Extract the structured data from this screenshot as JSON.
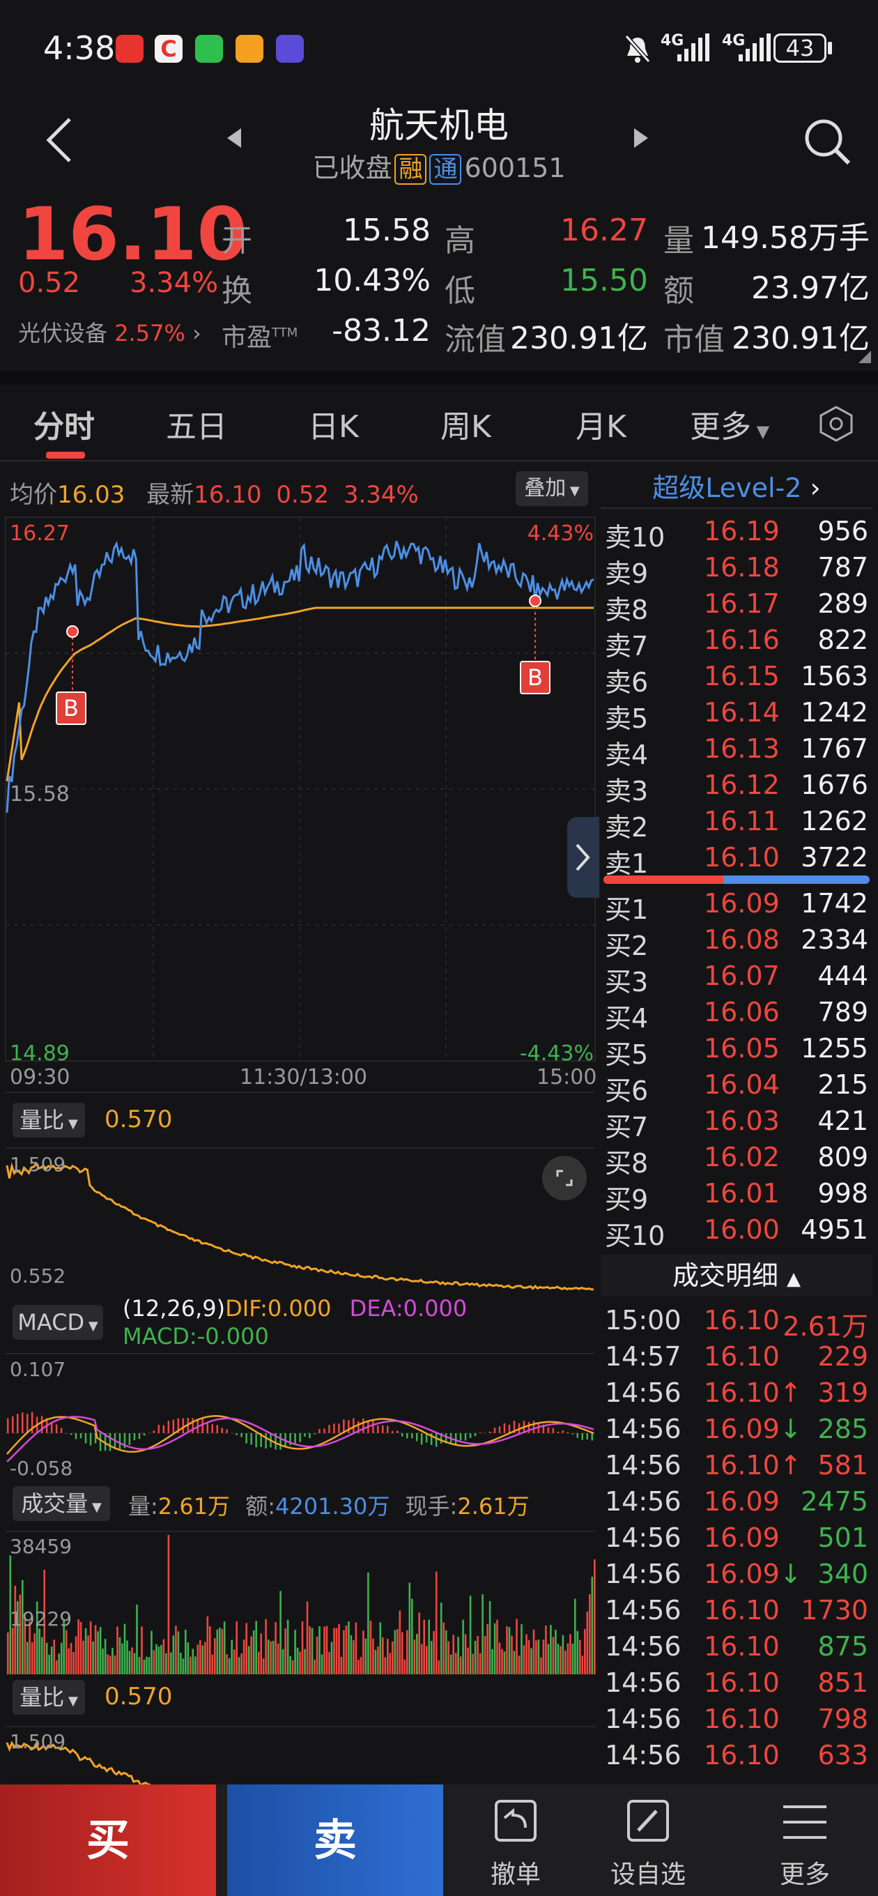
{
  "status_bar": {
    "time": "4:38",
    "battery": "43",
    "network": [
      "4G",
      "4G"
    ],
    "app_icons": [
      "red-notes-icon",
      "red-c-icon",
      "wechat-icon",
      "orange-app-icon",
      "purple-app-icon"
    ]
  },
  "header": {
    "title": "航天机电",
    "status": "已收盘",
    "tag_margin": "融",
    "tag_connect": "通",
    "code": "600151"
  },
  "quote": {
    "price": "16.10",
    "change": "0.52",
    "change_pct": "3.34%",
    "sector_name": "光伏设备",
    "sector_pct": "2.57%",
    "open_label": "开",
    "open": "15.58",
    "high_label": "高",
    "high": "16.27",
    "volume_label": "量",
    "volume": "149.58万手",
    "turnover_label": "换",
    "turnover": "10.43%",
    "low_label": "低",
    "low": "15.50",
    "amount_label": "额",
    "amount": "23.97亿",
    "pe_label": "市盈",
    "pe_sup": "TTM",
    "pe": "-83.12",
    "float_label": "流值",
    "float_value": "230.91亿",
    "mcap_label": "市值",
    "mcap": "230.91亿"
  },
  "tabs": [
    "分时",
    "五日",
    "日K",
    "周K",
    "月K",
    "更多"
  ],
  "intraday": {
    "avg_label": "均价",
    "avg": "16.03",
    "latest_label": "最新",
    "latest": "16.10",
    "latest_change": "0.52",
    "latest_pct": "3.34%",
    "overlay_btn": "叠加",
    "y_top": "16.27",
    "y_mid": "15.58",
    "y_bottom": "14.89",
    "pct_top": "4.43%",
    "pct_bottom": "-4.43%",
    "x_labels": [
      "09:30",
      "11:30/13:00",
      "15:00"
    ],
    "buy_marker": "B"
  },
  "volume_ratio": {
    "label": "量比",
    "value": "0.570",
    "y_top": "1.509",
    "y_bottom": "0.552"
  },
  "macd": {
    "label": "MACD",
    "params": "(12,26,9)",
    "dif_label": "DIF:",
    "dif": "0.000",
    "dea_label": "DEA:",
    "dea": "0.000",
    "macd_label": "MACD:",
    "macd": "-0.000",
    "y_top": "0.107",
    "y_bottom": "-0.058"
  },
  "volume": {
    "label": "成交量",
    "vol_label": "量:",
    "vol": "2.61万",
    "amt_label": "额:",
    "amt": "4201.30万",
    "cur_label": "现手:",
    "cur": "2.61万",
    "y_top": "38459",
    "y_mid": "19229"
  },
  "volume_ratio2": {
    "label": "量比",
    "value": "0.570",
    "y_top": "1.509"
  },
  "orderbook": {
    "title": "超级Level-2",
    "asks": [
      {
        "label": "卖10",
        "price": "16.19",
        "vol": "956"
      },
      {
        "label": "卖9",
        "price": "16.18",
        "vol": "787"
      },
      {
        "label": "卖8",
        "price": "16.17",
        "vol": "289"
      },
      {
        "label": "卖7",
        "price": "16.16",
        "vol": "822"
      },
      {
        "label": "卖6",
        "price": "16.15",
        "vol": "1563"
      },
      {
        "label": "卖5",
        "price": "16.14",
        "vol": "1242"
      },
      {
        "label": "卖4",
        "price": "16.13",
        "vol": "1767"
      },
      {
        "label": "卖3",
        "price": "16.12",
        "vol": "1676"
      },
      {
        "label": "卖2",
        "price": "16.11",
        "vol": "1262"
      },
      {
        "label": "卖1",
        "price": "16.10",
        "vol": "3722"
      }
    ],
    "bids": [
      {
        "label": "买1",
        "price": "16.09",
        "vol": "1742"
      },
      {
        "label": "买2",
        "price": "16.08",
        "vol": "2334"
      },
      {
        "label": "买3",
        "price": "16.07",
        "vol": "444"
      },
      {
        "label": "买4",
        "price": "16.06",
        "vol": "789"
      },
      {
        "label": "买5",
        "price": "16.05",
        "vol": "1255"
      },
      {
        "label": "买6",
        "price": "16.04",
        "vol": "215"
      },
      {
        "label": "买7",
        "price": "16.03",
        "vol": "421"
      },
      {
        "label": "买8",
        "price": "16.02",
        "vol": "809"
      },
      {
        "label": "买9",
        "price": "16.01",
        "vol": "998"
      },
      {
        "label": "买10",
        "price": "16.00",
        "vol": "4951"
      }
    ],
    "bid_ask_ratio": 0.45
  },
  "trades": {
    "title": "成交明细",
    "rows": [
      {
        "time": "15:00",
        "price": "16.10",
        "vol": "2.61万",
        "arrow": "",
        "pc": "red",
        "vc": "red"
      },
      {
        "time": "14:57",
        "price": "16.10",
        "vol": "229",
        "arrow": "",
        "pc": "red",
        "vc": "red"
      },
      {
        "time": "14:56",
        "price": "16.10",
        "vol": "319",
        "arrow": "↑",
        "pc": "red",
        "vc": "red"
      },
      {
        "time": "14:56",
        "price": "16.09",
        "vol": "285",
        "arrow": "↓",
        "pc": "red",
        "vc": "green"
      },
      {
        "time": "14:56",
        "price": "16.10",
        "vol": "581",
        "arrow": "↑",
        "pc": "red",
        "vc": "red"
      },
      {
        "time": "14:56",
        "price": "16.09",
        "vol": "2475",
        "arrow": "",
        "pc": "red",
        "vc": "green"
      },
      {
        "time": "14:56",
        "price": "16.09",
        "vol": "501",
        "arrow": "",
        "pc": "red",
        "vc": "green"
      },
      {
        "time": "14:56",
        "price": "16.09",
        "vol": "340",
        "arrow": "↓",
        "pc": "red",
        "vc": "green"
      },
      {
        "time": "14:56",
        "price": "16.10",
        "vol": "1730",
        "arrow": "",
        "pc": "red",
        "vc": "red"
      },
      {
        "time": "14:56",
        "price": "16.10",
        "vol": "875",
        "arrow": "",
        "pc": "red",
        "vc": "green"
      },
      {
        "time": "14:56",
        "price": "16.10",
        "vol": "851",
        "arrow": "",
        "pc": "red",
        "vc": "red"
      },
      {
        "time": "14:56",
        "price": "16.10",
        "vol": "798",
        "arrow": "",
        "pc": "red",
        "vc": "red"
      },
      {
        "time": "14:56",
        "price": "16.10",
        "vol": "633",
        "arrow": "",
        "pc": "red",
        "vc": "red"
      }
    ]
  },
  "bottom": {
    "buy": "买",
    "sell": "卖",
    "cancel": "撤单",
    "watchlist": "设自选",
    "more": "更多"
  },
  "colors": {
    "up": "#f0463f",
    "down": "#3fb24f",
    "price_line": "#4d8fe6",
    "avg_line": "#f2a428",
    "bg": "#141416"
  }
}
